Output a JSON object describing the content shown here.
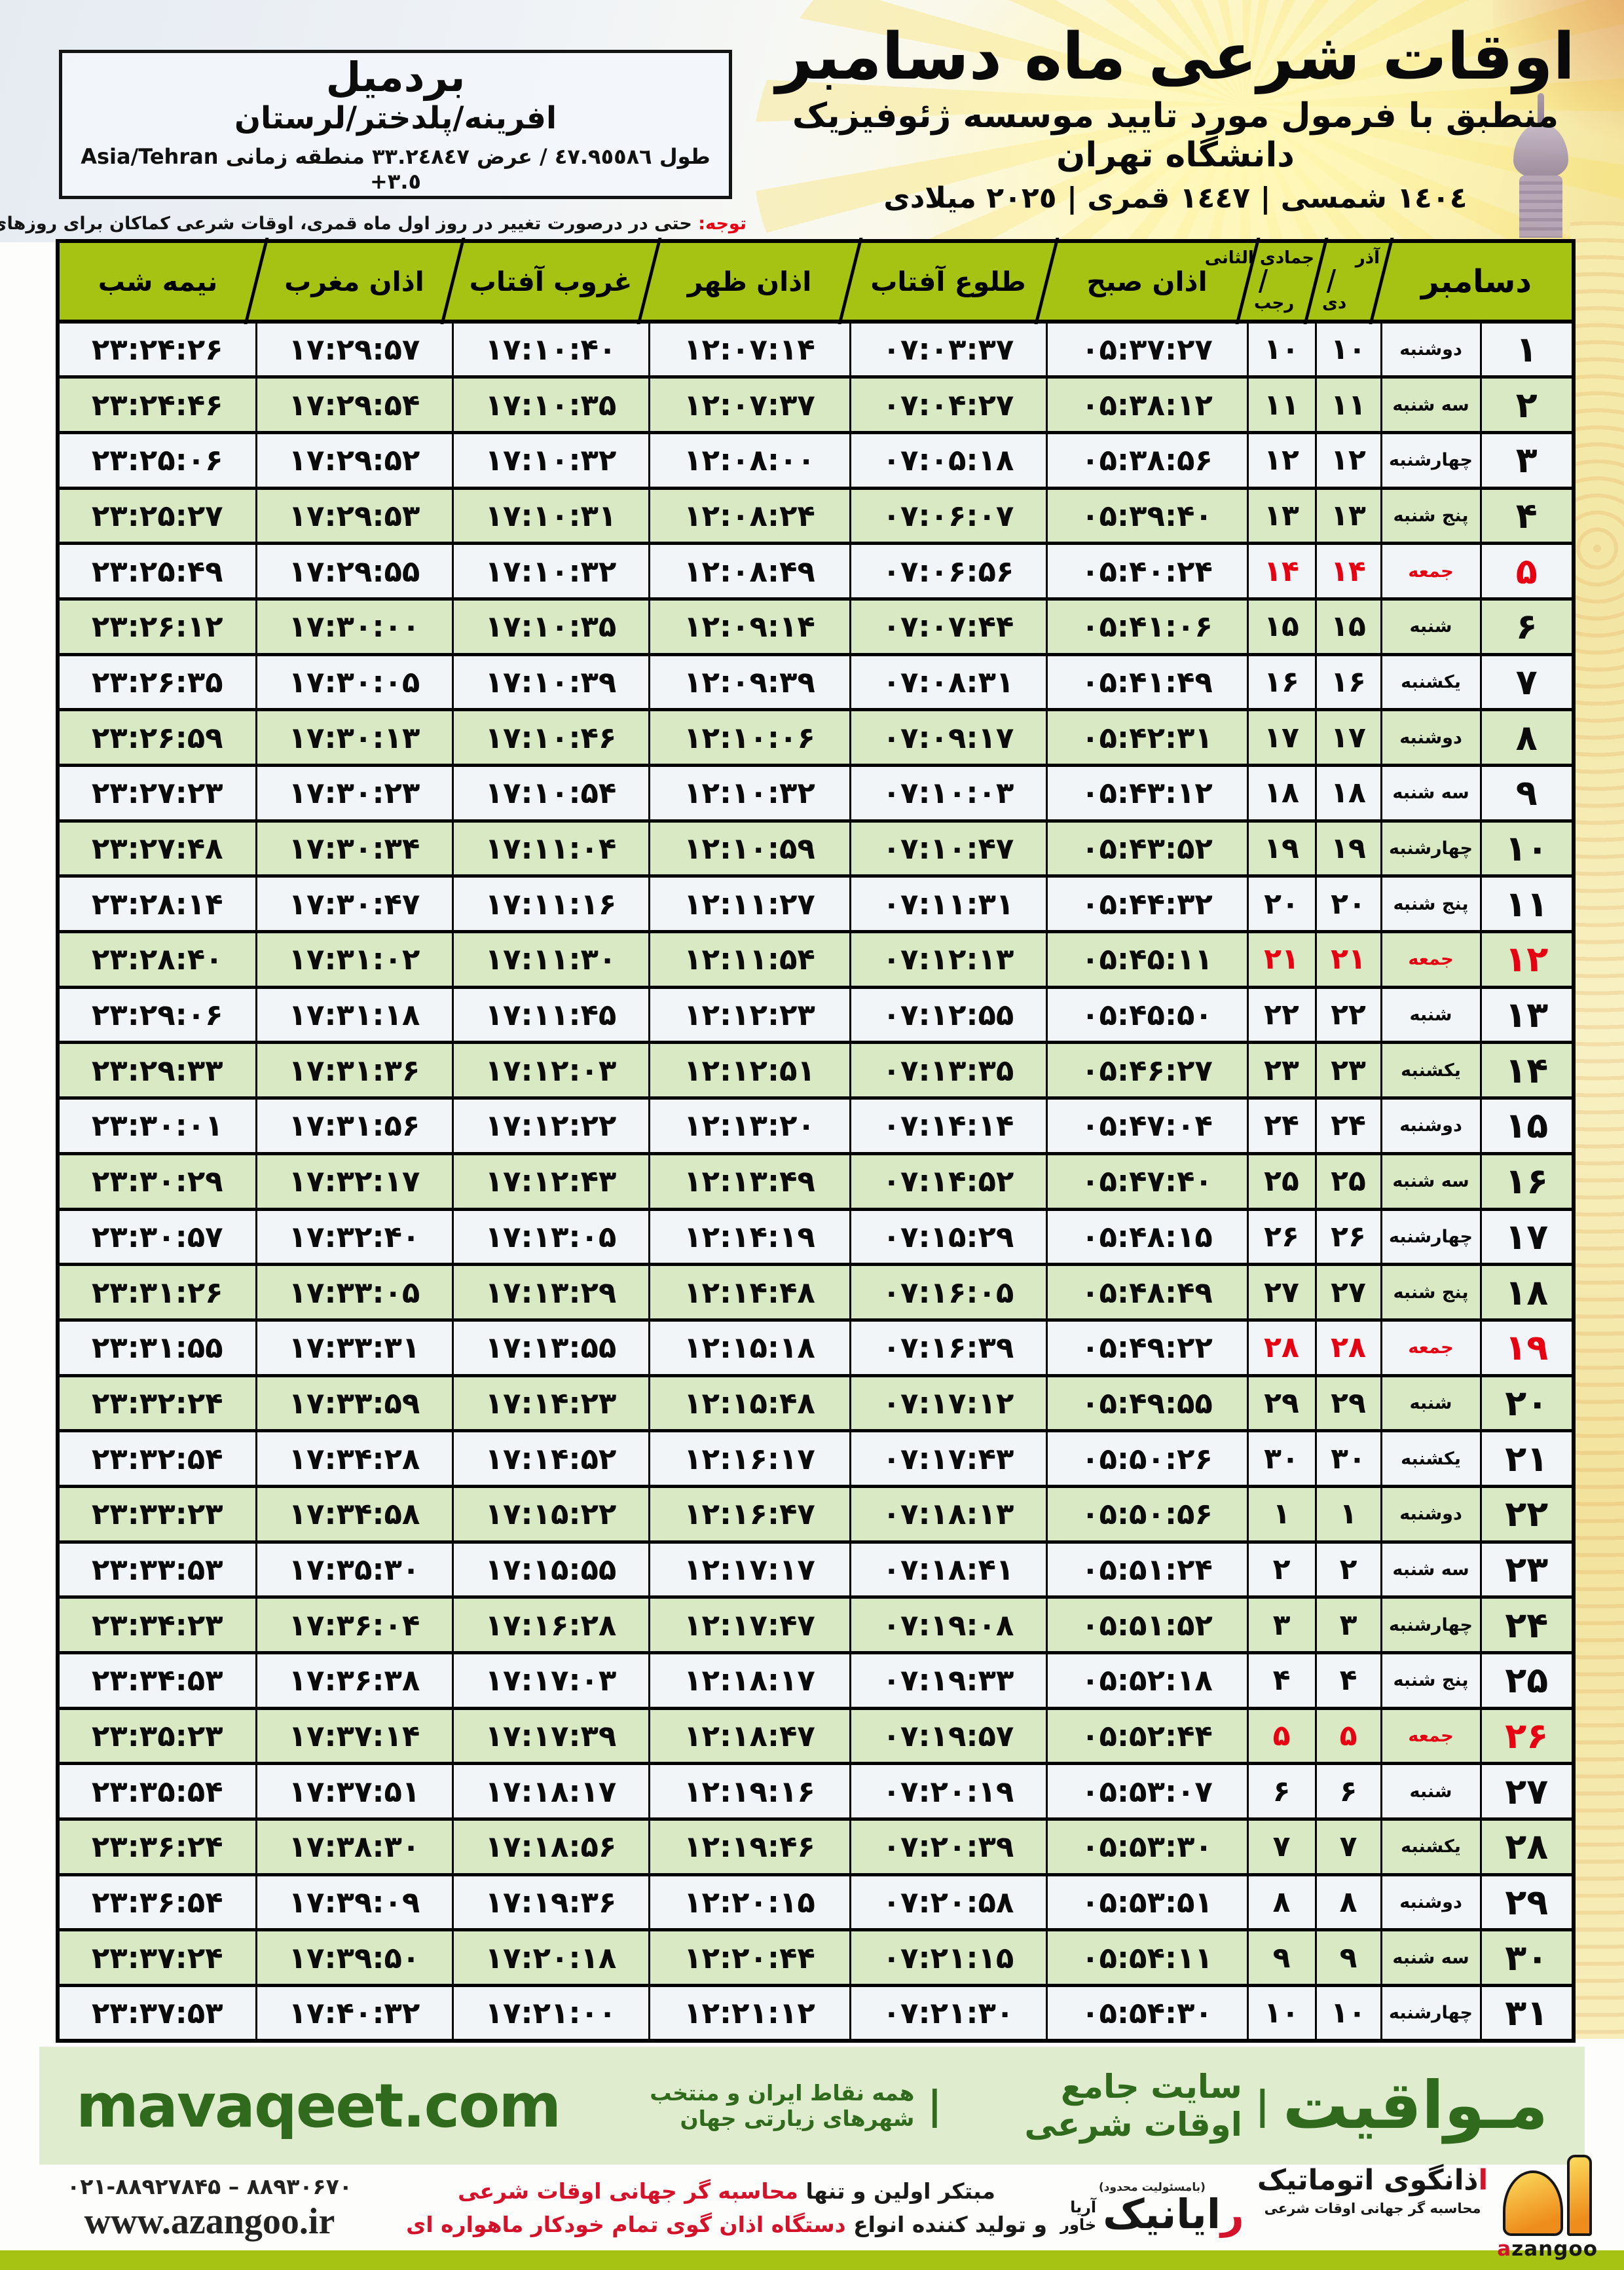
{
  "header": {
    "title": "اوقات شرعی ماه دسامبر",
    "subtitle": "منطبق با فرمول مورد تایید موسسه ژئوفیزیک دانشگاه تهران",
    "years": "١٤٠٤ شمسی | ١٤٤٧ قمری | ٢٠٢٥ میلادی"
  },
  "location": {
    "name": "بردمیل",
    "region": "افرینه/پلدختر/لرستان",
    "coords": "طول ٤٧.٩٥٥٨٦ / عرض ٣٣.٢٤٨٤٧ منطقه زمانی",
    "timezone": "Asia/Tehran +٣.٥"
  },
  "note": {
    "label": "توجه:",
    "text": "حتی در درصورت تغییر در روز اول ماه قمری، اوقات شرعی کماکان برای روزهای شمسی و میلادی معتبر است."
  },
  "table": {
    "headers": {
      "december": "دسامبر",
      "solar_top": "آذر",
      "solar_bottom": "دی",
      "lunar_top": "جمادی الثانی",
      "lunar_bottom": "رجب",
      "fajr": "اذان صبح",
      "sunrise": "طلوع آفتاب",
      "noon": "اذان ظهر",
      "sunset": "غروب آفتاب",
      "maghrib": "اذان مغرب",
      "midnight": "نیمه شب"
    },
    "rows": [
      {
        "day": "۱",
        "weekday": "دوشنبه",
        "solar": "۱۰",
        "lunar": "۱۰",
        "fajr": "۰۵:۳۷:۲۷",
        "sunrise": "۰۷:۰۳:۳۷",
        "noon": "۱۲:۰۷:۱۴",
        "sunset": "۱۷:۱۰:۴۰",
        "maghrib": "۱۷:۲۹:۵۷",
        "midnight": "۲۳:۲۴:۲۶",
        "friday": false
      },
      {
        "day": "۲",
        "weekday": "سه شنبه",
        "solar": "۱۱",
        "lunar": "۱۱",
        "fajr": "۰۵:۳۸:۱۲",
        "sunrise": "۰۷:۰۴:۲۷",
        "noon": "۱۲:۰۷:۳۷",
        "sunset": "۱۷:۱۰:۳۵",
        "maghrib": "۱۷:۲۹:۵۴",
        "midnight": "۲۳:۲۴:۴۶",
        "friday": false
      },
      {
        "day": "۳",
        "weekday": "چهارشنبه",
        "solar": "۱۲",
        "lunar": "۱۲",
        "fajr": "۰۵:۳۸:۵۶",
        "sunrise": "۰۷:۰۵:۱۸",
        "noon": "۱۲:۰۸:۰۰",
        "sunset": "۱۷:۱۰:۳۲",
        "maghrib": "۱۷:۲۹:۵۲",
        "midnight": "۲۳:۲۵:۰۶",
        "friday": false
      },
      {
        "day": "۴",
        "weekday": "پنج شنبه",
        "solar": "۱۳",
        "lunar": "۱۳",
        "fajr": "۰۵:۳۹:۴۰",
        "sunrise": "۰۷:۰۶:۰۷",
        "noon": "۱۲:۰۸:۲۴",
        "sunset": "۱۷:۱۰:۳۱",
        "maghrib": "۱۷:۲۹:۵۳",
        "midnight": "۲۳:۲۵:۲۷",
        "friday": false
      },
      {
        "day": "۵",
        "weekday": "جمعه",
        "solar": "۱۴",
        "lunar": "۱۴",
        "fajr": "۰۵:۴۰:۲۴",
        "sunrise": "۰۷:۰۶:۵۶",
        "noon": "۱۲:۰۸:۴۹",
        "sunset": "۱۷:۱۰:۳۲",
        "maghrib": "۱۷:۲۹:۵۵",
        "midnight": "۲۳:۲۵:۴۹",
        "friday": true
      },
      {
        "day": "۶",
        "weekday": "شنبه",
        "solar": "۱۵",
        "lunar": "۱۵",
        "fajr": "۰۵:۴۱:۰۶",
        "sunrise": "۰۷:۰۷:۴۴",
        "noon": "۱۲:۰۹:۱۴",
        "sunset": "۱۷:۱۰:۳۵",
        "maghrib": "۱۷:۳۰:۰۰",
        "midnight": "۲۳:۲۶:۱۲",
        "friday": false
      },
      {
        "day": "۷",
        "weekday": "یکشنبه",
        "solar": "۱۶",
        "lunar": "۱۶",
        "fajr": "۰۵:۴۱:۴۹",
        "sunrise": "۰۷:۰۸:۳۱",
        "noon": "۱۲:۰۹:۳۹",
        "sunset": "۱۷:۱۰:۳۹",
        "maghrib": "۱۷:۳۰:۰۵",
        "midnight": "۲۳:۲۶:۳۵",
        "friday": false
      },
      {
        "day": "۸",
        "weekday": "دوشنبه",
        "solar": "۱۷",
        "lunar": "۱۷",
        "fajr": "۰۵:۴۲:۳۱",
        "sunrise": "۰۷:۰۹:۱۷",
        "noon": "۱۲:۱۰:۰۶",
        "sunset": "۱۷:۱۰:۴۶",
        "maghrib": "۱۷:۳۰:۱۳",
        "midnight": "۲۳:۲۶:۵۹",
        "friday": false
      },
      {
        "day": "۹",
        "weekday": "سه شنبه",
        "solar": "۱۸",
        "lunar": "۱۸",
        "fajr": "۰۵:۴۳:۱۲",
        "sunrise": "۰۷:۱۰:۰۳",
        "noon": "۱۲:۱۰:۳۲",
        "sunset": "۱۷:۱۰:۵۴",
        "maghrib": "۱۷:۳۰:۲۳",
        "midnight": "۲۳:۲۷:۲۳",
        "friday": false
      },
      {
        "day": "۱۰",
        "weekday": "چهارشنبه",
        "solar": "۱۹",
        "lunar": "۱۹",
        "fajr": "۰۵:۴۳:۵۲",
        "sunrise": "۰۷:۱۰:۴۷",
        "noon": "۱۲:۱۰:۵۹",
        "sunset": "۱۷:۱۱:۰۴",
        "maghrib": "۱۷:۳۰:۳۴",
        "midnight": "۲۳:۲۷:۴۸",
        "friday": false
      },
      {
        "day": "۱۱",
        "weekday": "پنج شنبه",
        "solar": "۲۰",
        "lunar": "۲۰",
        "fajr": "۰۵:۴۴:۳۲",
        "sunrise": "۰۷:۱۱:۳۱",
        "noon": "۱۲:۱۱:۲۷",
        "sunset": "۱۷:۱۱:۱۶",
        "maghrib": "۱۷:۳۰:۴۷",
        "midnight": "۲۳:۲۸:۱۴",
        "friday": false
      },
      {
        "day": "۱۲",
        "weekday": "جمعه",
        "solar": "۲۱",
        "lunar": "۲۱",
        "fajr": "۰۵:۴۵:۱۱",
        "sunrise": "۰۷:۱۲:۱۳",
        "noon": "۱۲:۱۱:۵۴",
        "sunset": "۱۷:۱۱:۳۰",
        "maghrib": "۱۷:۳۱:۰۲",
        "midnight": "۲۳:۲۸:۴۰",
        "friday": true
      },
      {
        "day": "۱۳",
        "weekday": "شنبه",
        "solar": "۲۲",
        "lunar": "۲۲",
        "fajr": "۰۵:۴۵:۵۰",
        "sunrise": "۰۷:۱۲:۵۵",
        "noon": "۱۲:۱۲:۲۳",
        "sunset": "۱۷:۱۱:۴۵",
        "maghrib": "۱۷:۳۱:۱۸",
        "midnight": "۲۳:۲۹:۰۶",
        "friday": false
      },
      {
        "day": "۱۴",
        "weekday": "یکشنبه",
        "solar": "۲۳",
        "lunar": "۲۳",
        "fajr": "۰۵:۴۶:۲۷",
        "sunrise": "۰۷:۱۳:۳۵",
        "noon": "۱۲:۱۲:۵۱",
        "sunset": "۱۷:۱۲:۰۳",
        "maghrib": "۱۷:۳۱:۳۶",
        "midnight": "۲۳:۲۹:۳۳",
        "friday": false
      },
      {
        "day": "۱۵",
        "weekday": "دوشنبه",
        "solar": "۲۴",
        "lunar": "۲۴",
        "fajr": "۰۵:۴۷:۰۴",
        "sunrise": "۰۷:۱۴:۱۴",
        "noon": "۱۲:۱۳:۲۰",
        "sunset": "۱۷:۱۲:۲۲",
        "maghrib": "۱۷:۳۱:۵۶",
        "midnight": "۲۳:۳۰:۰۱",
        "friday": false
      },
      {
        "day": "۱۶",
        "weekday": "سه شنبه",
        "solar": "۲۵",
        "lunar": "۲۵",
        "fajr": "۰۵:۴۷:۴۰",
        "sunrise": "۰۷:۱۴:۵۲",
        "noon": "۱۲:۱۳:۴۹",
        "sunset": "۱۷:۱۲:۴۳",
        "maghrib": "۱۷:۳۲:۱۷",
        "midnight": "۲۳:۳۰:۲۹",
        "friday": false
      },
      {
        "day": "۱۷",
        "weekday": "چهارشنبه",
        "solar": "۲۶",
        "lunar": "۲۶",
        "fajr": "۰۵:۴۸:۱۵",
        "sunrise": "۰۷:۱۵:۲۹",
        "noon": "۱۲:۱۴:۱۹",
        "sunset": "۱۷:۱۳:۰۵",
        "maghrib": "۱۷:۳۲:۴۰",
        "midnight": "۲۳:۳۰:۵۷",
        "friday": false
      },
      {
        "day": "۱۸",
        "weekday": "پنج شنبه",
        "solar": "۲۷",
        "lunar": "۲۷",
        "fajr": "۰۵:۴۸:۴۹",
        "sunrise": "۰۷:۱۶:۰۵",
        "noon": "۱۲:۱۴:۴۸",
        "sunset": "۱۷:۱۳:۲۹",
        "maghrib": "۱۷:۳۳:۰۵",
        "midnight": "۲۳:۳۱:۲۶",
        "friday": false
      },
      {
        "day": "۱۹",
        "weekday": "جمعه",
        "solar": "۲۸",
        "lunar": "۲۸",
        "fajr": "۰۵:۴۹:۲۲",
        "sunrise": "۰۷:۱۶:۳۹",
        "noon": "۱۲:۱۵:۱۸",
        "sunset": "۱۷:۱۳:۵۵",
        "maghrib": "۱۷:۳۳:۳۱",
        "midnight": "۲۳:۳۱:۵۵",
        "friday": true
      },
      {
        "day": "۲۰",
        "weekday": "شنبه",
        "solar": "۲۹",
        "lunar": "۲۹",
        "fajr": "۰۵:۴۹:۵۵",
        "sunrise": "۰۷:۱۷:۱۲",
        "noon": "۱۲:۱۵:۴۸",
        "sunset": "۱۷:۱۴:۲۳",
        "maghrib": "۱۷:۳۳:۵۹",
        "midnight": "۲۳:۳۲:۲۴",
        "friday": false
      },
      {
        "day": "۲۱",
        "weekday": "یکشنبه",
        "solar": "۳۰",
        "lunar": "۳۰",
        "fajr": "۰۵:۵۰:۲۶",
        "sunrise": "۰۷:۱۷:۴۳",
        "noon": "۱۲:۱۶:۱۷",
        "sunset": "۱۷:۱۴:۵۲",
        "maghrib": "۱۷:۳۴:۲۸",
        "midnight": "۲۳:۳۲:۵۴",
        "friday": false
      },
      {
        "day": "۲۲",
        "weekday": "دوشنبه",
        "solar": "۱",
        "lunar": "۱",
        "fajr": "۰۵:۵۰:۵۶",
        "sunrise": "۰۷:۱۸:۱۳",
        "noon": "۱۲:۱۶:۴۷",
        "sunset": "۱۷:۱۵:۲۲",
        "maghrib": "۱۷:۳۴:۵۸",
        "midnight": "۲۳:۳۳:۲۳",
        "friday": false
      },
      {
        "day": "۲۳",
        "weekday": "سه شنبه",
        "solar": "۲",
        "lunar": "۲",
        "fajr": "۰۵:۵۱:۲۴",
        "sunrise": "۰۷:۱۸:۴۱",
        "noon": "۱۲:۱۷:۱۷",
        "sunset": "۱۷:۱۵:۵۵",
        "maghrib": "۱۷:۳۵:۳۰",
        "midnight": "۲۳:۳۳:۵۳",
        "friday": false
      },
      {
        "day": "۲۴",
        "weekday": "چهارشنبه",
        "solar": "۳",
        "lunar": "۳",
        "fajr": "۰۵:۵۱:۵۲",
        "sunrise": "۰۷:۱۹:۰۸",
        "noon": "۱۲:۱۷:۴۷",
        "sunset": "۱۷:۱۶:۲۸",
        "maghrib": "۱۷:۳۶:۰۴",
        "midnight": "۲۳:۳۴:۲۳",
        "friday": false
      },
      {
        "day": "۲۵",
        "weekday": "پنج شنبه",
        "solar": "۴",
        "lunar": "۴",
        "fajr": "۰۵:۵۲:۱۸",
        "sunrise": "۰۷:۱۹:۳۳",
        "noon": "۱۲:۱۸:۱۷",
        "sunset": "۱۷:۱۷:۰۳",
        "maghrib": "۱۷:۳۶:۳۸",
        "midnight": "۲۳:۳۴:۵۳",
        "friday": false
      },
      {
        "day": "۲۶",
        "weekday": "جمعه",
        "solar": "۵",
        "lunar": "۵",
        "fajr": "۰۵:۵۲:۴۴",
        "sunrise": "۰۷:۱۹:۵۷",
        "noon": "۱۲:۱۸:۴۷",
        "sunset": "۱۷:۱۷:۳۹",
        "maghrib": "۱۷:۳۷:۱۴",
        "midnight": "۲۳:۳۵:۲۳",
        "friday": true
      },
      {
        "day": "۲۷",
        "weekday": "شنبه",
        "solar": "۶",
        "lunar": "۶",
        "fajr": "۰۵:۵۳:۰۷",
        "sunrise": "۰۷:۲۰:۱۹",
        "noon": "۱۲:۱۹:۱۶",
        "sunset": "۱۷:۱۸:۱۷",
        "maghrib": "۱۷:۳۷:۵۱",
        "midnight": "۲۳:۳۵:۵۴",
        "friday": false
      },
      {
        "day": "۲۸",
        "weekday": "یکشنبه",
        "solar": "۷",
        "lunar": "۷",
        "fajr": "۰۵:۵۳:۳۰",
        "sunrise": "۰۷:۲۰:۳۹",
        "noon": "۱۲:۱۹:۴۶",
        "sunset": "۱۷:۱۸:۵۶",
        "maghrib": "۱۷:۳۸:۳۰",
        "midnight": "۲۳:۳۶:۲۴",
        "friday": false
      },
      {
        "day": "۲۹",
        "weekday": "دوشنبه",
        "solar": "۸",
        "lunar": "۸",
        "fajr": "۰۵:۵۳:۵۱",
        "sunrise": "۰۷:۲۰:۵۸",
        "noon": "۱۲:۲۰:۱۵",
        "sunset": "۱۷:۱۹:۳۶",
        "maghrib": "۱۷:۳۹:۰۹",
        "midnight": "۲۳:۳۶:۵۴",
        "friday": false
      },
      {
        "day": "۳۰",
        "weekday": "سه شنبه",
        "solar": "۹",
        "lunar": "۹",
        "fajr": "۰۵:۵۴:۱۱",
        "sunrise": "۰۷:۲۱:۱۵",
        "noon": "۱۲:۲۰:۴۴",
        "sunset": "۱۷:۲۰:۱۸",
        "maghrib": "۱۷:۳۹:۵۰",
        "midnight": "۲۳:۳۷:۲۴",
        "friday": false
      },
      {
        "day": "۳۱",
        "weekday": "چهارشنبه",
        "solar": "۱۰",
        "lunar": "۱۰",
        "fajr": "۰۵:۵۴:۳۰",
        "sunrise": "۰۷:۲۱:۳۰",
        "noon": "۱۲:۲۱:۱۲",
        "sunset": "۱۷:۲۱:۰۰",
        "maghrib": "۱۷:۴۰:۳۲",
        "midnight": "۲۳:۳۷:۵۳",
        "friday": false
      }
    ]
  },
  "footer": {
    "site_url": "mavaqeet.com",
    "brand_name": "مـواقیت",
    "brand_sep": "|",
    "brand_tag1": "سایت جامع اوقات شرعی",
    "brand_tag2": "همه نقاط ایران و منتخب شهرهای زیارتی جهان",
    "phones": "۰۲۱-۸۸۹۲۷۸۴۵ – ۸۸۹۳۰۶۷۰",
    "website": "www.azangoo.ir",
    "promo1_black": "مبتکر اولین و تنها",
    "promo1_red": "محاسبه گر جهانی اوقات شرعی",
    "promo2_black": "و تولید کننده انواع",
    "promo2_red": "دستگاه اذان گوی تمام خودکار ماهواره ای",
    "rayanik_top": "(بامسئولیت محدود)",
    "rayanik_red": "ر",
    "rayanik_rest": "ایانیک",
    "rayanik_side1": "آریا",
    "rayanik_side2": "خاور",
    "azangoo_fa_red": "ا",
    "azangoo_fa_rest": "ذانگوی اتوماتیک",
    "azangoo_sub": "محاسبه گر جهانی اوقات شرعی",
    "azangoo_en_red": "a",
    "azangoo_en_rest": "zangoo"
  },
  "colors": {
    "header_green": "#a6c313",
    "row_green": "#d8e9c4",
    "row_light": "#f2f5f8",
    "friday_red": "#e60012",
    "footer_bar": "#dfeccd",
    "footer_text_green": "#2f6a1d",
    "bottom_bar": "#a6c313"
  }
}
